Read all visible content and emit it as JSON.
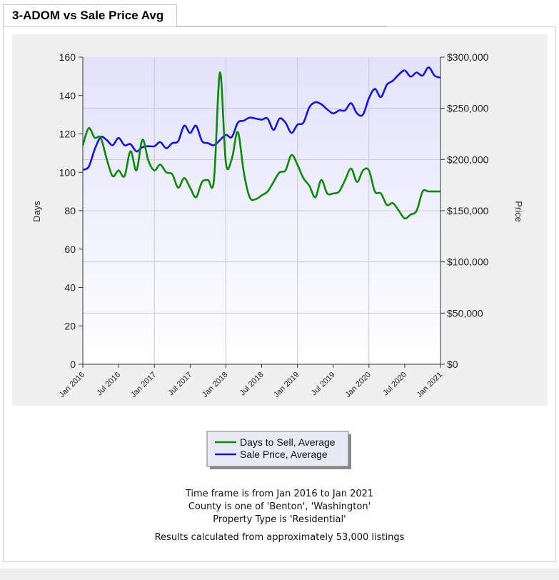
{
  "tab": {
    "title": "3-ADOM vs Sale Price Avg"
  },
  "info": {
    "line1": "Time frame is from Jan 2016 to Jan 2021",
    "line2": "County is one of 'Benton', 'Washington'",
    "line3": "Property Type is 'Residential'",
    "line4": "Results calculated from approximately 53,000 listings"
  },
  "chart_data": {
    "type": "line",
    "title": "",
    "xlabel": "",
    "ylabel": "Days",
    "y2label": "Price",
    "x_ticks": [
      "Jan 2016",
      "Jul 2016",
      "Jan 2017",
      "Jul 2017",
      "Jan 2018",
      "Jul 2018",
      "Jan 2019",
      "Jul 2019",
      "Jan 2020",
      "Jul 2020",
      "Jan 2021"
    ],
    "ylim": [
      0,
      160
    ],
    "y_ticks": [
      "0",
      "20",
      "40",
      "60",
      "80",
      "100",
      "120",
      "140",
      "160"
    ],
    "y2lim": [
      0,
      300000
    ],
    "y2_ticks": [
      "$0",
      "$50,000",
      "$100,000",
      "$150,000",
      "$200,000",
      "$250,000",
      "$300,000"
    ],
    "grid": true,
    "legend_position": "bottom-center",
    "colors": {
      "days": "#0a8a0a",
      "price": "#1414e6",
      "plot_bg_top": "#e2e2fb",
      "plot_bg_bottom": "#ffffff"
    },
    "x": [
      2016.0,
      2016.083,
      2016.167,
      2016.25,
      2016.333,
      2016.417,
      2016.5,
      2016.583,
      2016.667,
      2016.75,
      2016.833,
      2016.917,
      2017.0,
      2017.083,
      2017.167,
      2017.25,
      2017.333,
      2017.417,
      2017.5,
      2017.583,
      2017.667,
      2017.75,
      2017.833,
      2017.917,
      2018.0,
      2018.083,
      2018.167,
      2018.25,
      2018.333,
      2018.417,
      2018.5,
      2018.583,
      2018.667,
      2018.75,
      2018.833,
      2018.917,
      2019.0,
      2019.083,
      2019.167,
      2019.25,
      2019.333,
      2019.417,
      2019.5,
      2019.583,
      2019.667,
      2019.75,
      2019.833,
      2019.917,
      2020.0,
      2020.083,
      2020.167,
      2020.25,
      2020.333,
      2020.417,
      2020.5,
      2020.583,
      2020.667,
      2020.75,
      2020.833,
      2020.917,
      2021.0
    ],
    "series": [
      {
        "name": "Days to Sell, Average",
        "axis": "left",
        "values": [
          114,
          123,
          118,
          118,
          107,
          98,
          101,
          98,
          111,
          101,
          117,
          106,
          101,
          104,
          100,
          99,
          92,
          97,
          92,
          87,
          95,
          96,
          96,
          152,
          105,
          107,
          121,
          100,
          87,
          86,
          88,
          90,
          95,
          100,
          101,
          109,
          104,
          97,
          93,
          87,
          96,
          89,
          89,
          90,
          96,
          102,
          95,
          101,
          101,
          90,
          89,
          83,
          84,
          80,
          76,
          78,
          80,
          90,
          90,
          90,
          90
        ],
        "color": "#0a8a0a"
      },
      {
        "name": "Sale Price, Average",
        "axis": "right",
        "values": [
          190000,
          193000,
          210000,
          222000,
          219000,
          214000,
          221000,
          214000,
          215000,
          208000,
          212000,
          213000,
          213000,
          217000,
          211000,
          216000,
          218000,
          233000,
          226000,
          233000,
          218000,
          216000,
          214000,
          219000,
          224000,
          222000,
          236000,
          238000,
          241000,
          240000,
          239000,
          240000,
          229000,
          240000,
          236000,
          226000,
          234000,
          236000,
          251000,
          256000,
          254000,
          249000,
          245000,
          248000,
          248000,
          255000,
          245000,
          244000,
          260000,
          269000,
          261000,
          273000,
          277000,
          283000,
          287000,
          281000,
          285000,
          282000,
          290000,
          282000,
          280000
        ]
      }
    ]
  }
}
